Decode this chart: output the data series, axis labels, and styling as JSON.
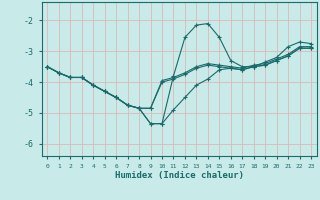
{
  "xlabel": "Humidex (Indice chaleur)",
  "bg_color": "#c8eae8",
  "grid_color": "#ddb8b8",
  "line_color": "#1a6b6b",
  "xlim": [
    -0.5,
    23.5
  ],
  "ylim": [
    -6.4,
    -1.4
  ],
  "yticks": [
    -6,
    -5,
    -4,
    -3,
    -2
  ],
  "xticks": [
    0,
    1,
    2,
    3,
    4,
    5,
    6,
    7,
    8,
    9,
    10,
    11,
    12,
    13,
    14,
    15,
    16,
    17,
    18,
    19,
    20,
    21,
    22,
    23
  ],
  "lines": [
    {
      "x": [
        0,
        1,
        2,
        3,
        4,
        5,
        6,
        7,
        8,
        9,
        10,
        11,
        12,
        13,
        14,
        15,
        16,
        17,
        18,
        19,
        20,
        21,
        22,
        23
      ],
      "y": [
        -3.5,
        -3.7,
        -3.85,
        -3.85,
        -4.1,
        -4.3,
        -4.5,
        -4.75,
        -4.85,
        -5.35,
        -5.35,
        -3.8,
        -2.55,
        -2.15,
        -2.1,
        -2.55,
        -3.3,
        -3.5,
        -3.5,
        -3.35,
        -3.2,
        -2.85,
        -2.7,
        -2.75
      ]
    },
    {
      "x": [
        0,
        1,
        2,
        3,
        4,
        5,
        6,
        7,
        8,
        9,
        10,
        11,
        12,
        13,
        14,
        15,
        16,
        17,
        18,
        19,
        20,
        21,
        22,
        23
      ],
      "y": [
        -3.5,
        -3.7,
        -3.85,
        -3.85,
        -4.1,
        -4.3,
        -4.5,
        -4.75,
        -4.85,
        -4.85,
        -3.95,
        -3.85,
        -3.7,
        -3.5,
        -3.4,
        -3.45,
        -3.5,
        -3.55,
        -3.45,
        -3.4,
        -3.25,
        -3.1,
        -2.85,
        -2.85
      ]
    },
    {
      "x": [
        0,
        1,
        2,
        3,
        4,
        5,
        6,
        7,
        8,
        9,
        10,
        11,
        12,
        13,
        14,
        15,
        16,
        17,
        18,
        19,
        20,
        21,
        22,
        23
      ],
      "y": [
        -3.5,
        -3.7,
        -3.85,
        -3.85,
        -4.1,
        -4.3,
        -4.5,
        -4.75,
        -4.85,
        -4.85,
        -4.0,
        -3.9,
        -3.75,
        -3.55,
        -3.45,
        -3.5,
        -3.55,
        -3.6,
        -3.5,
        -3.45,
        -3.3,
        -3.15,
        -2.9,
        -2.9
      ]
    },
    {
      "x": [
        0,
        1,
        2,
        3,
        4,
        5,
        6,
        7,
        8,
        9,
        10,
        11,
        12,
        13,
        14,
        15,
        16,
        17,
        18,
        19,
        20,
        21,
        22,
        23
      ],
      "y": [
        -3.5,
        -3.7,
        -3.85,
        -3.85,
        -4.1,
        -4.3,
        -4.5,
        -4.75,
        -4.85,
        -5.35,
        -5.35,
        -4.9,
        -4.5,
        -4.1,
        -3.9,
        -3.6,
        -3.55,
        -3.6,
        -3.5,
        -3.45,
        -3.3,
        -3.15,
        -2.9,
        -2.9
      ]
    }
  ]
}
